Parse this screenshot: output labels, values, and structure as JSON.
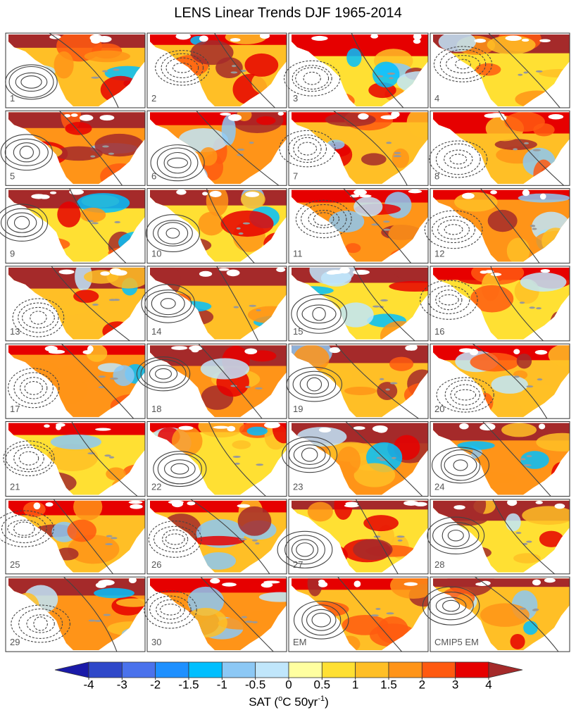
{
  "title": "LENS Linear Trends DJF 1965-2014",
  "panels": [
    "1",
    "2",
    "3",
    "4",
    "5",
    "6",
    "7",
    "8",
    "9",
    "10",
    "11",
    "12",
    "13",
    "14",
    "15",
    "16",
    "17",
    "18",
    "19",
    "20",
    "21",
    "22",
    "23",
    "24",
    "25",
    "26",
    "27",
    "28",
    "29",
    "30",
    "EM",
    "CMIP5 EM"
  ],
  "colorbar": {
    "ticks": [
      -4,
      -3,
      -2,
      -1.5,
      -1,
      -0.5,
      0,
      0.5,
      1,
      1.5,
      2,
      3,
      4
    ],
    "colors": [
      "#1a1aa8",
      "#2f48c9",
      "#4a72ec",
      "#1e90ff",
      "#00bfff",
      "#8cc8f5",
      "#c0e6fb",
      "#ffffa0",
      "#ffe033",
      "#ffbf26",
      "#ff9418",
      "#ff5a10",
      "#e60000",
      "#a52a2a"
    ],
    "label": {
      "text": "SAT (",
      "degree": "o",
      "unit": "C 50yr",
      "exponent": "-1",
      "close": ")"
    }
  }
}
